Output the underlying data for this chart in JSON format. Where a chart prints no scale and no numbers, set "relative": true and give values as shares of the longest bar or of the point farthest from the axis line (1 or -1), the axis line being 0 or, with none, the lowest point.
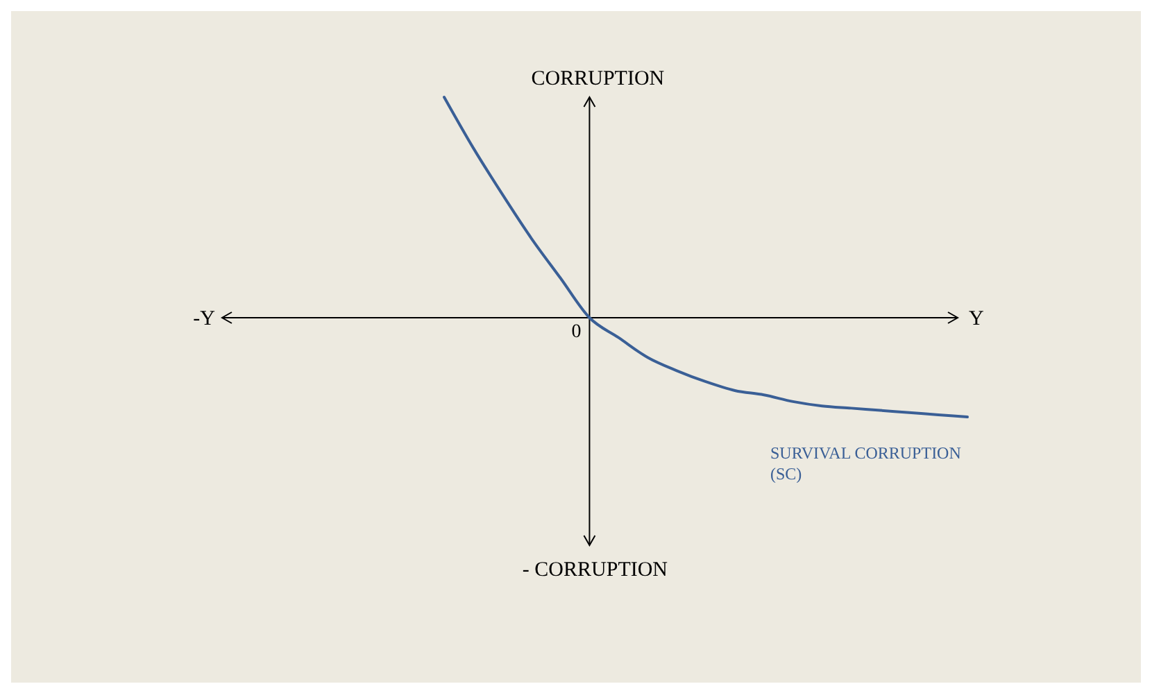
{
  "chart_data": {
    "type": "line",
    "relative": true,
    "ylabel": "CORRUPTION",
    "xlabel": "Y",
    "annotations": [
      "-Y",
      "0",
      "- CORRUPTION"
    ],
    "categories": [
      null,
      null,
      null,
      null,
      null,
      null,
      null,
      null,
      null,
      null,
      null,
      null,
      null,
      null,
      null,
      null,
      null,
      null,
      null
    ],
    "series": [
      {
        "name": "SURVIVAL CORRUPTION (SC)",
        "color": "#3a5f96",
        "values": [
          1,
          0.77,
          0.56,
          0.36,
          0.18,
          0,
          -0.09,
          -0.18,
          -0.24,
          -0.29,
          -0.33,
          -0.35,
          -0.38,
          -0.4,
          -0.41,
          -0.42,
          -0.43,
          -0.44,
          -0.45
        ]
      }
    ],
    "marker": "none",
    "line_style": "solid"
  }
}
